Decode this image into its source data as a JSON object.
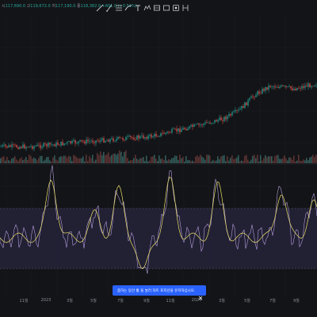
{
  "ohlc": {
    "open_label": "시",
    "open": "117,690.0",
    "high_label": "고",
    "high": "119,672.0",
    "low_label": "저",
    "low": "117,190.0",
    "close_label": "종",
    "close": "118,382.0",
    "change": "+601.0 (+0.51%)"
  },
  "toolbar": {
    "icons": [
      "trendline-icon",
      "diagonal-line-icon",
      "fib-icon",
      "brush-icon",
      "text-icon",
      "pattern-icon",
      "projection-icon",
      "measure-icon",
      "shapes-icon",
      "ruler-icon"
    ]
  },
  "x_axis": {
    "labels": [
      "11월",
      "2023",
      "3월",
      "5월",
      "7월",
      "9월",
      "11월",
      "2024",
      "3월",
      "5월",
      "7월",
      "9월"
    ]
  },
  "toast": {
    "text": "줌하는 동안 휠 을 눌러 차트 포지션을 유지하십시오.",
    "close_icon": "close-icon"
  },
  "colors": {
    "background": "#131417",
    "candle_up": "#26a69a",
    "candle_down": "#ef5350",
    "oscillator": "#b39ddb",
    "signal": "#e8e06a",
    "band_fill": "#2a2540",
    "toast": "#2962ff"
  }
}
